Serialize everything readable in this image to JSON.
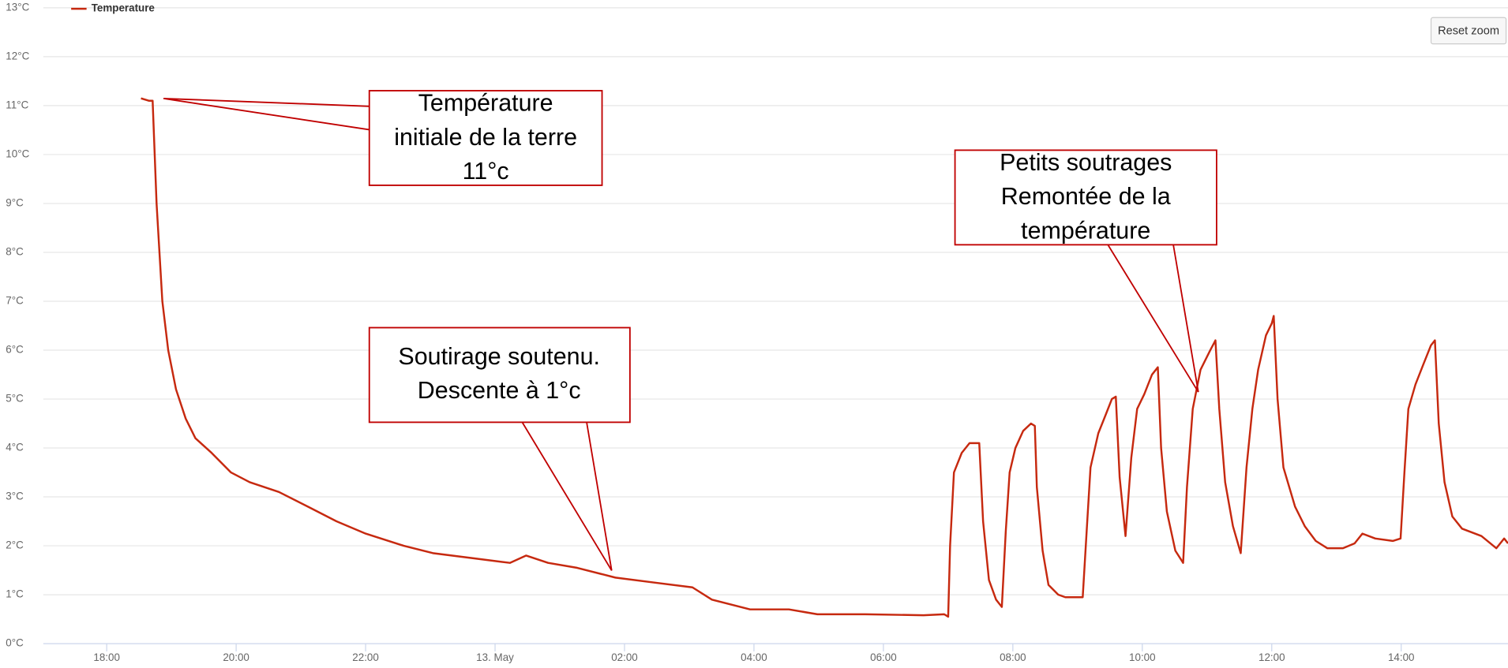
{
  "chart_data": {
    "type": "line",
    "series": [
      {
        "name": "Temperature",
        "color": "#c6290f",
        "values": [
          11.15,
          11.1,
          11.1,
          9,
          7,
          6,
          5.2,
          4.6,
          4.2,
          3.9,
          3.5,
          3.3,
          3.1,
          2.8,
          2.5,
          2.25,
          2.0,
          1.85,
          1.75,
          1.65,
          1.8,
          1.65,
          1.55,
          1.35,
          1.25,
          1.15,
          0.9,
          0.7,
          0.7,
          0.6,
          0.6,
          0.58,
          0.6,
          0.55,
          2,
          3.5,
          3.9,
          4.1,
          4.1,
          2.5,
          1.3,
          0.9,
          0.75,
          2.3,
          3.5,
          4.0,
          4.35,
          4.5,
          4.45,
          3.2,
          1.9,
          1.2,
          1.0,
          0.95,
          0.95,
          2.3,
          3.6,
          4.3,
          4.7,
          5.0,
          5.05,
          3.4,
          2.2,
          3.8,
          4.8,
          5.1,
          5.5,
          5.65,
          4.0,
          2.7,
          1.9,
          1.65,
          3.2,
          4.8,
          5.6,
          6.0,
          6.2,
          4.8,
          3.3,
          2.4,
          1.85,
          3.6,
          4.8,
          5.6,
          6.3,
          6.55,
          6.7,
          5.0,
          3.6,
          2.8,
          2.4,
          2.1,
          1.95,
          1.95,
          2.05,
          2.25,
          2.15,
          2.1,
          2.15,
          3.5,
          4.8,
          5.3,
          5.7,
          6.1,
          6.2,
          4.5,
          3.3,
          2.6,
          2.35,
          2.2,
          1.95,
          2.15,
          2.05
        ]
      }
    ],
    "x": [
      18.53,
      18.65,
      18.71,
      18.77,
      18.86,
      18.95,
      19.07,
      19.22,
      19.37,
      19.62,
      19.92,
      20.21,
      20.66,
      21.11,
      21.55,
      22.0,
      22.59,
      23.04,
      23.63,
      24.23,
      24.48,
      24.82,
      25.27,
      25.86,
      26.45,
      27.05,
      27.35,
      27.94,
      28.54,
      28.98,
      29.72,
      30.62,
      30.94,
      31.0,
      31.03,
      31.09,
      31.21,
      31.33,
      31.48,
      31.54,
      31.63,
      31.74,
      31.83,
      31.89,
      31.95,
      32.04,
      32.16,
      32.28,
      32.34,
      32.37,
      32.46,
      32.55,
      32.7,
      32.81,
      33.08,
      33.14,
      33.2,
      33.32,
      33.44,
      33.53,
      33.59,
      33.65,
      33.74,
      33.83,
      33.92,
      34.03,
      34.15,
      34.24,
      34.29,
      34.38,
      34.51,
      34.63,
      34.69,
      34.78,
      34.9,
      35.05,
      35.13,
      35.19,
      35.28,
      35.4,
      35.52,
      35.61,
      35.7,
      35.79,
      35.91,
      36.0,
      36.03,
      36.09,
      36.18,
      36.36,
      36.51,
      36.68,
      36.86,
      37.1,
      37.28,
      37.4,
      37.6,
      37.87,
      37.99,
      38.05,
      38.11,
      38.22,
      38.34,
      38.46,
      38.52,
      38.58,
      38.67,
      38.79,
      38.94,
      39.24,
      39.47,
      39.59,
      39.65
    ],
    "xlim": [
      17.02,
      39.65
    ],
    "xticks": [
      {
        "value": 18,
        "label": "18:00"
      },
      {
        "value": 20,
        "label": "20:00"
      },
      {
        "value": 22,
        "label": "22:00"
      },
      {
        "value": 24,
        "label": "13. May"
      },
      {
        "value": 26,
        "label": "02:00"
      },
      {
        "value": 28,
        "label": "04:00"
      },
      {
        "value": 30,
        "label": "06:00"
      },
      {
        "value": 32,
        "label": "08:00"
      },
      {
        "value": 34,
        "label": "10:00"
      },
      {
        "value": 36,
        "label": "12:00"
      },
      {
        "value": 38,
        "label": "14:00"
      }
    ],
    "ylim": [
      0,
      13
    ],
    "yticks": [
      {
        "value": 0,
        "label": "0°C"
      },
      {
        "value": 1,
        "label": "1°C"
      },
      {
        "value": 2,
        "label": "2°C"
      },
      {
        "value": 3,
        "label": "3°C"
      },
      {
        "value": 4,
        "label": "4°C"
      },
      {
        "value": 5,
        "label": "5°C"
      },
      {
        "value": 6,
        "label": "6°C"
      },
      {
        "value": 7,
        "label": "7°C"
      },
      {
        "value": 8,
        "label": "8°C"
      },
      {
        "value": 9,
        "label": "9°C"
      },
      {
        "value": 10,
        "label": "10°C"
      },
      {
        "value": 11,
        "label": "11°C"
      },
      {
        "value": 12,
        "label": "12°C"
      },
      {
        "value": 13,
        "label": "13°C"
      }
    ],
    "grid": true,
    "legend": "top-left",
    "button": "Reset zoom",
    "annotations": [
      {
        "lines": [
          "Température",
          "initiale de la terre",
          "11°c"
        ]
      },
      {
        "lines": [
          "Petits soutrages",
          "Remontée de la",
          "température"
        ]
      },
      {
        "lines": [
          "Soutirage soutenu.",
          "Descente à 1°c"
        ]
      }
    ]
  }
}
